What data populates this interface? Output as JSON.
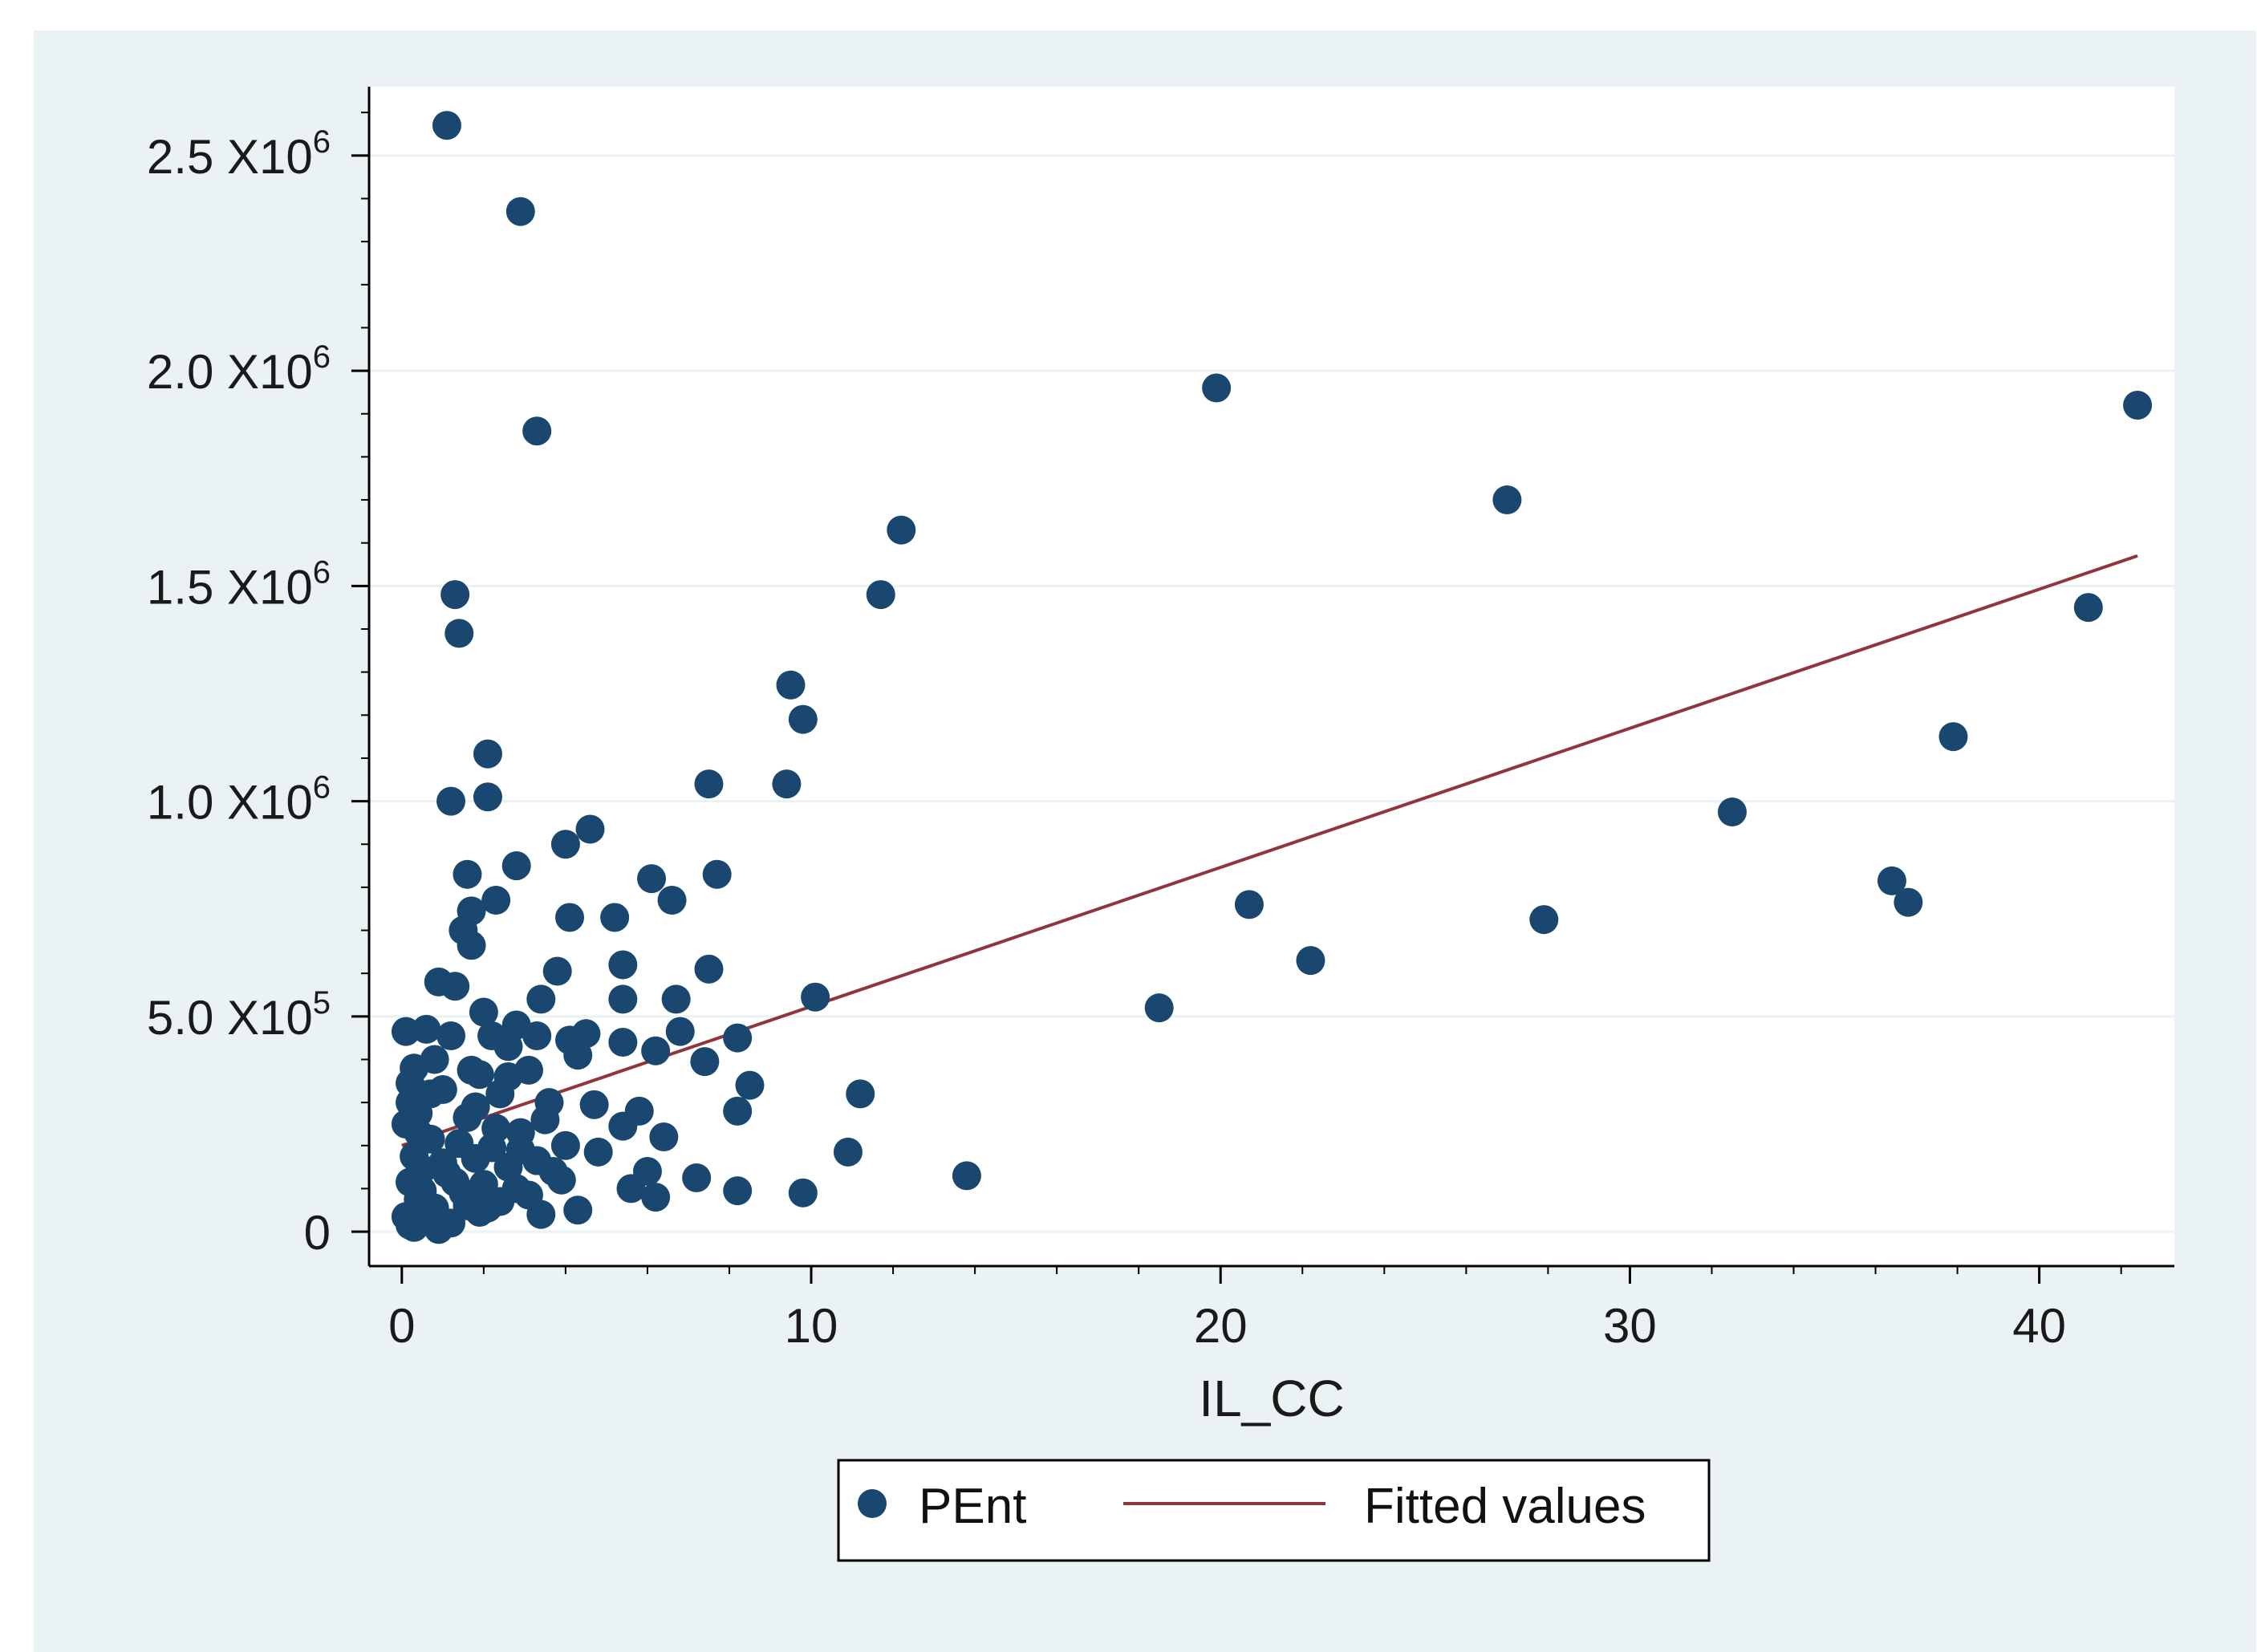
{
  "chart_data": {
    "type": "scatter",
    "title": "",
    "xlabel": "IL_CC",
    "ylabel": "",
    "xlim": [
      -0.8,
      43.3
    ],
    "ylim": [
      -80000,
      2660000
    ],
    "x_ticks": [
      0,
      10,
      20,
      30,
      40
    ],
    "x_tick_labels": [
      "0",
      "10",
      "20",
      "30",
      "40"
    ],
    "y_ticks": [
      0,
      500000,
      1000000,
      1500000,
      2000000,
      2500000
    ],
    "y_tick_labels": [
      {
        "mantissa": "0",
        "exponent": ""
      },
      {
        "mantissa": "5.0 X10",
        "exponent": "5"
      },
      {
        "mantissa": "1.0 X10",
        "exponent": "6"
      },
      {
        "mantissa": "1.5 X10",
        "exponent": "6"
      },
      {
        "mantissa": "2.0 X10",
        "exponent": "6"
      },
      {
        "mantissa": "2.5 X10",
        "exponent": "6"
      }
    ],
    "grid": true,
    "legend_position": "bottom",
    "colors": {
      "outer_background": "#eaf2f3",
      "plot_background": "#ffffff",
      "marker": "#1a476f",
      "fit_line": "#90353b",
      "grid": "#eaf2f3",
      "axis": "#000000"
    },
    "series": [
      {
        "name": "PEnt",
        "kind": "scatter",
        "points": [
          [
            1.1,
            2570000
          ],
          [
            2.9,
            2370000
          ],
          [
            3.3,
            1860000
          ],
          [
            19.9,
            1960000
          ],
          [
            42.4,
            1920000
          ],
          [
            27.0,
            1700000
          ],
          [
            12.2,
            1630000
          ],
          [
            11.7,
            1480000
          ],
          [
            1.3,
            1480000
          ],
          [
            1.4,
            1390000
          ],
          [
            41.2,
            1450000
          ],
          [
            9.5,
            1270000
          ],
          [
            9.8,
            1190000
          ],
          [
            37.9,
            1150000
          ],
          [
            2.1,
            1110000
          ],
          [
            7.5,
            1040000
          ],
          [
            9.4,
            1040000
          ],
          [
            1.2,
            1000000
          ],
          [
            2.1,
            1010000
          ],
          [
            32.5,
            975000
          ],
          [
            4.6,
            935000
          ],
          [
            4.0,
            900000
          ],
          [
            2.8,
            850000
          ],
          [
            1.6,
            830000
          ],
          [
            6.1,
            820000
          ],
          [
            7.7,
            830000
          ],
          [
            36.4,
            815000
          ],
          [
            36.8,
            765000
          ],
          [
            2.3,
            770000
          ],
          [
            6.6,
            770000
          ],
          [
            1.7,
            745000
          ],
          [
            20.7,
            760000
          ],
          [
            4.1,
            730000
          ],
          [
            5.2,
            730000
          ],
          [
            27.9,
            725000
          ],
          [
            1.5,
            700000
          ],
          [
            1.7,
            665000
          ],
          [
            22.2,
            630000
          ],
          [
            5.4,
            620000
          ],
          [
            7.5,
            610000
          ],
          [
            3.8,
            605000
          ],
          [
            0.9,
            580000
          ],
          [
            1.3,
            570000
          ],
          [
            3.4,
            540000
          ],
          [
            6.7,
            540000
          ],
          [
            10.1,
            545000
          ],
          [
            5.4,
            540000
          ],
          [
            18.5,
            520000
          ],
          [
            2.0,
            510000
          ],
          [
            2.8,
            480000
          ],
          [
            0.6,
            470000
          ],
          [
            0.1,
            465000
          ],
          [
            4.5,
            460000
          ],
          [
            3.3,
            455000
          ],
          [
            1.2,
            455000
          ],
          [
            6.8,
            465000
          ],
          [
            8.2,
            450000
          ],
          [
            4.1,
            445000
          ],
          [
            5.4,
            440000
          ],
          [
            6.2,
            420000
          ],
          [
            2.6,
            430000
          ],
          [
            4.3,
            410000
          ],
          [
            7.4,
            395000
          ],
          [
            0.3,
            380000
          ],
          [
            3.1,
            375000
          ],
          [
            1.9,
            365000
          ],
          [
            8.5,
            340000
          ],
          [
            0.2,
            345000
          ],
          [
            1.0,
            330000
          ],
          [
            2.4,
            320000
          ],
          [
            11.2,
            320000
          ],
          [
            4.7,
            295000
          ],
          [
            5.8,
            280000
          ],
          [
            8.2,
            280000
          ],
          [
            0.4,
            275000
          ],
          [
            1.6,
            265000
          ],
          [
            3.5,
            260000
          ],
          [
            0.1,
            250000
          ],
          [
            5.4,
            245000
          ],
          [
            2.9,
            230000
          ],
          [
            6.4,
            220000
          ],
          [
            0.7,
            215000
          ],
          [
            1.4,
            205000
          ],
          [
            4.0,
            200000
          ],
          [
            2.2,
            195000
          ],
          [
            10.9,
            185000
          ],
          [
            4.8,
            185000
          ],
          [
            0.3,
            175000
          ],
          [
            1.8,
            170000
          ],
          [
            3.3,
            165000
          ],
          [
            2.6,
            150000
          ],
          [
            0.5,
            145000
          ],
          [
            6.0,
            140000
          ],
          [
            1.1,
            135000
          ],
          [
            13.8,
            130000
          ],
          [
            7.2,
            125000
          ],
          [
            3.9,
            120000
          ],
          [
            0.2,
            115000
          ],
          [
            2.0,
            110000
          ],
          [
            5.6,
            100000
          ],
          [
            8.2,
            95000
          ],
          [
            9.8,
            90000
          ],
          [
            1.5,
            90000
          ],
          [
            3.1,
            85000
          ],
          [
            6.2,
            80000
          ],
          [
            0.4,
            75000
          ],
          [
            2.4,
            70000
          ],
          [
            4.3,
            50000
          ],
          [
            0.8,
            55000
          ],
          [
            1.9,
            45000
          ],
          [
            3.4,
            40000
          ],
          [
            0.1,
            35000
          ],
          [
            0.6,
            25000
          ],
          [
            1.2,
            20000
          ],
          [
            0.3,
            10000
          ],
          [
            0.9,
            5000
          ],
          [
            0.2,
            15000
          ],
          [
            1.6,
            60000
          ],
          [
            2.8,
            100000
          ],
          [
            0.5,
            95000
          ],
          [
            1.0,
            160000
          ],
          [
            2.3,
            240000
          ],
          [
            1.8,
            290000
          ],
          [
            0.7,
            320000
          ],
          [
            2.6,
            360000
          ],
          [
            3.6,
            300000
          ],
          [
            0.4,
            230000
          ],
          [
            1.3,
            115000
          ],
          [
            2.1,
            55000
          ],
          [
            0.8,
            400000
          ],
          [
            2.9,
            190000
          ],
          [
            3.7,
            140000
          ],
          [
            1.7,
            375000
          ],
          [
            2.2,
            455000
          ],
          [
            0.2,
            300000
          ]
        ]
      },
      {
        "name": "Fitted values",
        "kind": "line",
        "points": [
          [
            0.0,
            200000
          ],
          [
            42.4,
            1570000
          ]
        ]
      }
    ],
    "legend": [
      {
        "label": "PEnt",
        "symbol": "marker"
      },
      {
        "label": "Fitted values",
        "symbol": "line"
      }
    ]
  }
}
